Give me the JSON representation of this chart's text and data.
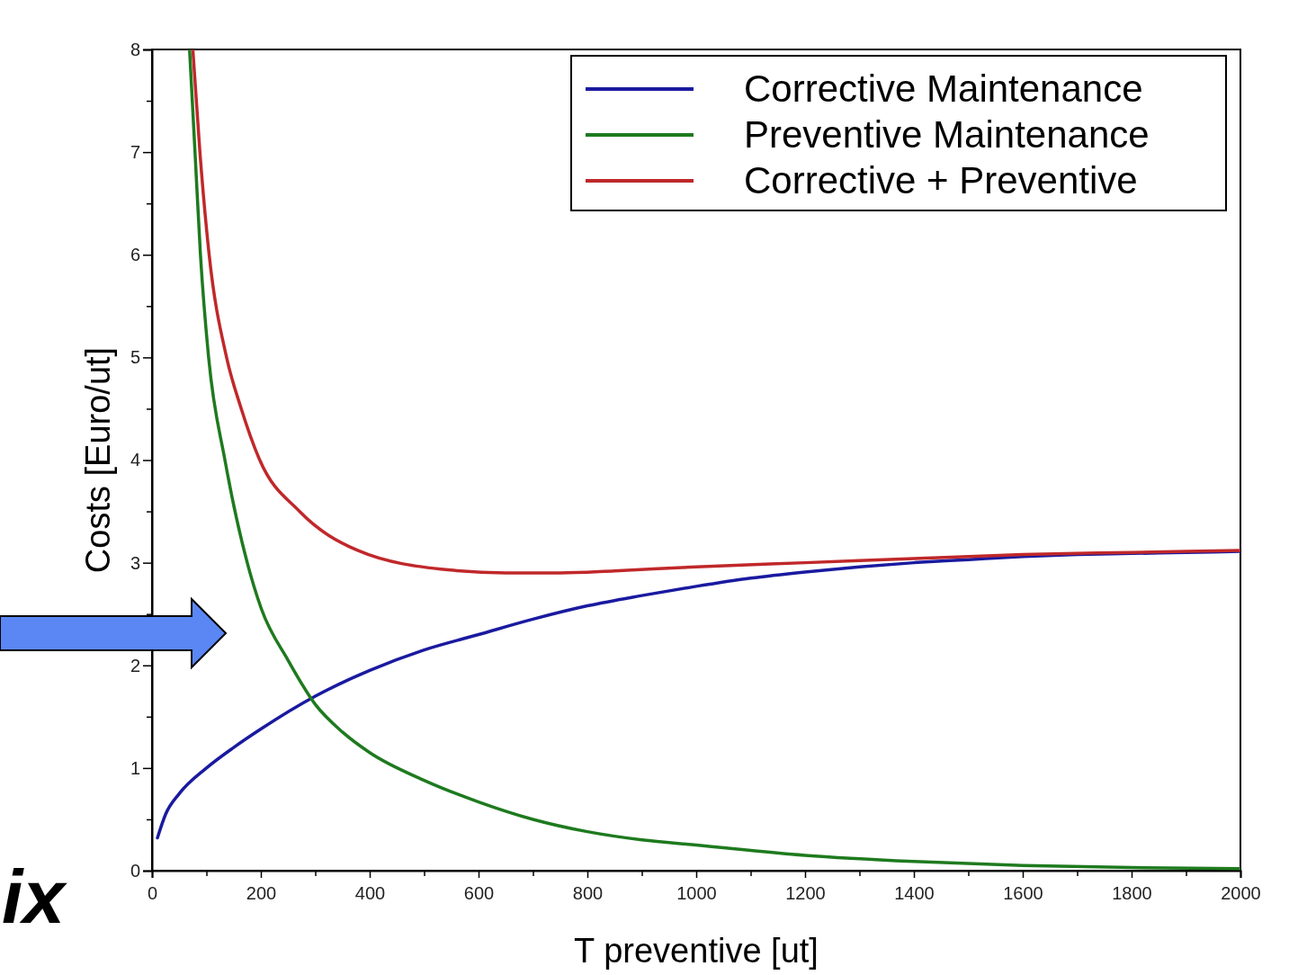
{
  "chart_data": {
    "type": "line",
    "xlabel": "T preventive [ut]",
    "ylabel": "Costs [Euro/ut]",
    "xlim": [
      0,
      2000
    ],
    "ylim": [
      0,
      8
    ],
    "xticks": [
      0,
      {
        "value": 100,
        "label": null
      },
      200,
      {
        "value": 300,
        "label": null
      },
      400,
      {
        "value": 500,
        "label": null
      },
      600,
      {
        "value": 700,
        "label": null
      },
      800,
      {
        "value": 900,
        "label": null
      },
      1000,
      {
        "value": 1100,
        "label": null
      },
      1200,
      {
        "value": 1300,
        "label": null
      },
      1400,
      {
        "value": 1500,
        "label": null
      },
      1600,
      {
        "value": 1700,
        "label": null
      },
      1800,
      {
        "value": 1900,
        "label": null
      },
      2000
    ],
    "yticks": [
      0,
      {
        "value": 0.5,
        "label": null
      },
      1,
      {
        "value": 1.5,
        "label": null
      },
      2,
      {
        "value": 2.5,
        "label": null
      },
      3,
      {
        "value": 3.5,
        "label": null
      },
      4,
      {
        "value": 4.5,
        "label": null
      },
      5,
      {
        "value": 5.5,
        "label": null
      },
      6,
      {
        "value": 6.5,
        "label": null
      },
      7,
      {
        "value": 7.5,
        "label": null
      },
      8
    ],
    "grid": false,
    "legend": "top right",
    "line_style": "solid",
    "marker": "none",
    "annotations": [
      "ix"
    ],
    "series": [
      {
        "name": "Corrective Maintenance",
        "color": "#1a1aa0",
        "x": [
          10,
          25,
          50,
          100,
          150,
          200,
          300,
          400,
          500,
          600,
          700,
          800,
          900,
          1000,
          1100,
          1200,
          1300,
          1400,
          1500,
          1600,
          1700,
          1800,
          1900,
          2000
        ],
        "values": [
          0.32,
          0.55,
          0.75,
          1.0,
          1.2,
          1.38,
          1.7,
          1.95,
          2.15,
          2.3,
          2.45,
          2.58,
          2.68,
          2.77,
          2.85,
          2.91,
          2.96,
          3.0,
          3.03,
          3.06,
          3.08,
          3.09,
          3.1,
          3.11
        ]
      },
      {
        "name": "Preventive Maintenance",
        "color": "#1e7a1e",
        "x": [
          69,
          79,
          89,
          104,
          134,
          175,
          201,
          250,
          300,
          350,
          400,
          500,
          600,
          700,
          800,
          900,
          1000,
          1200,
          1400,
          1600,
          1800,
          2000
        ],
        "values": [
          8,
          7,
          6,
          5,
          4,
          3,
          2.55,
          2.05,
          1.62,
          1.35,
          1.15,
          0.88,
          0.67,
          0.5,
          0.38,
          0.3,
          0.25,
          0.15,
          0.09,
          0.05,
          0.03,
          0.02
        ]
      },
      {
        "name": "Corrective + Preventive",
        "color": "#c0282a",
        "x": [
          75,
          88,
          105,
          137,
          164,
          198,
          271,
          378,
          544,
          650,
          750,
          850,
          1000,
          1200,
          1400,
          1600,
          1800,
          2000
        ],
        "values": [
          8,
          7,
          6,
          5,
          4.5,
          4,
          3.5,
          3.12,
          2.93,
          2.9,
          2.9,
          2.92,
          2.96,
          3.0,
          3.04,
          3.08,
          3.1,
          3.12
        ]
      }
    ]
  }
}
